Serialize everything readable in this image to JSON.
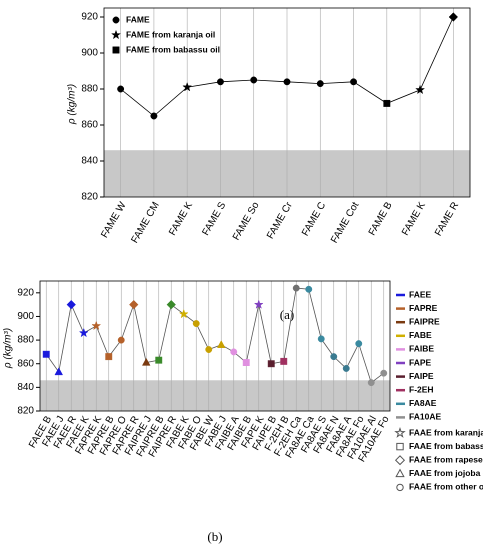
{
  "chart_data": [
    {
      "type": "line",
      "caption": "(a)",
      "y_label": "ρ (kg/m³)",
      "categories": [
        "FAME W",
        "FAME CM",
        "FAME K",
        "FAME S",
        "FAME So",
        "FAME Cr",
        "FAME C",
        "FAME Cot",
        "FAME B",
        "FAME K",
        "FAME R"
      ],
      "values": [
        880,
        865,
        881,
        884,
        885,
        884,
        883,
        884,
        872,
        879.5,
        920
      ],
      "markers": [
        "circle",
        "circle",
        "star",
        "circle",
        "circle",
        "circle",
        "circle",
        "circle",
        "square",
        "star",
        "diamond"
      ],
      "color": "#000000",
      "ylim": [
        820,
        925
      ],
      "yticks": [
        820,
        840,
        860,
        880,
        900,
        920
      ],
      "shaded_range": [
        820,
        846
      ],
      "grid": true,
      "legend": [
        {
          "name": "FAME",
          "marker": "circle"
        },
        {
          "name": "FAME from karanja oil",
          "marker": "star"
        },
        {
          "name": "FAME from babassu oil",
          "marker": "square"
        }
      ]
    },
    {
      "type": "line",
      "caption": "(b)",
      "y_label": "ρ (kg/m³)",
      "categories": [
        "FAEE B",
        "FAEE J",
        "FAEE R",
        "FAEE K",
        "FAPRE K",
        "FAPRE B",
        "FAPRE O",
        "FAPRE R",
        "FAIPRE J",
        "FAIPRE B",
        "FAIPRE R",
        "FABE K",
        "FABE O",
        "FABE W",
        "FABE J",
        "FAIBE A",
        "FAIBE B",
        "FAPE K",
        "FAIPE B",
        "F-2EH B",
        "F-2EH Ca",
        "FA8AE Ca",
        "FA8AE S",
        "FA8AE N",
        "FA8AE A",
        "FA8AE Fo",
        "FA10AE Al",
        "FA10AE Fo"
      ],
      "values": [
        868,
        853,
        910,
        886,
        892,
        866,
        880,
        910,
        861,
        863,
        910,
        902,
        894,
        872,
        876,
        870,
        861,
        910,
        860,
        862,
        924,
        923,
        881,
        866,
        856,
        877,
        844,
        852
      ],
      "markers": [
        "square",
        "triangle",
        "diamond",
        "star",
        "star",
        "square",
        "circle",
        "diamond",
        "triangle",
        "square",
        "diamond",
        "star",
        "circle",
        "circle",
        "triangle",
        "circle",
        "square",
        "star",
        "square",
        "square",
        "circle",
        "circle",
        "circle",
        "circle",
        "circle",
        "circle",
        "circle",
        "circle"
      ],
      "colors": [
        "#1a1adc",
        "#1a1adc",
        "#1a1adc",
        "#1a1adc",
        "#b5612a",
        "#b5612a",
        "#b5612a",
        "#b5612a",
        "#7a3a10",
        "#3a8a2a",
        "#3a8a2a",
        "#d0b000",
        "#c8a000",
        "#c8a000",
        "#c8a000",
        "#e090e0",
        "#e090e0",
        "#8040c0",
        "#5a1e2e",
        "#a03060",
        "#707070",
        "#3a8aa0",
        "#3a8aa0",
        "#3a7a90",
        "#3a7a90",
        "#3a8aa0",
        "#909090",
        "#909090"
      ],
      "color": "#555555",
      "ylim": [
        820,
        930
      ],
      "yticks": [
        820,
        840,
        860,
        880,
        900,
        920
      ],
      "shaded_range": [
        820,
        846
      ],
      "grid": true,
      "legend": [
        {
          "name": "FAEE",
          "color": "#1a1adc"
        },
        {
          "name": "FAPRE",
          "color": "#b5612a"
        },
        {
          "name": "FAIPRE",
          "color": "#7a3a10"
        },
        {
          "name": "FABE",
          "color": "#d0b000"
        },
        {
          "name": "FAIBE",
          "color": "#e090e0"
        },
        {
          "name": "FAPE",
          "color": "#8040c0"
        },
        {
          "name": "FAIPE",
          "color": "#5a1e2e"
        },
        {
          "name": "F-2EH",
          "color": "#a03060"
        },
        {
          "name": "FA8AE",
          "color": "#3a8aa0"
        },
        {
          "name": "FA10AE",
          "color": "#909090"
        }
      ],
      "marker_legend": [
        {
          "name": "FAAE from karanja oil",
          "marker": "star"
        },
        {
          "name": "FAAE from babassu oil",
          "marker": "square"
        },
        {
          "name": "FAAE from rapeseed oil",
          "marker": "diamond"
        },
        {
          "name": "FAAE from jojoba oil",
          "marker": "triangle"
        },
        {
          "name": "FAAE from other oil",
          "marker": "circle"
        }
      ]
    }
  ]
}
